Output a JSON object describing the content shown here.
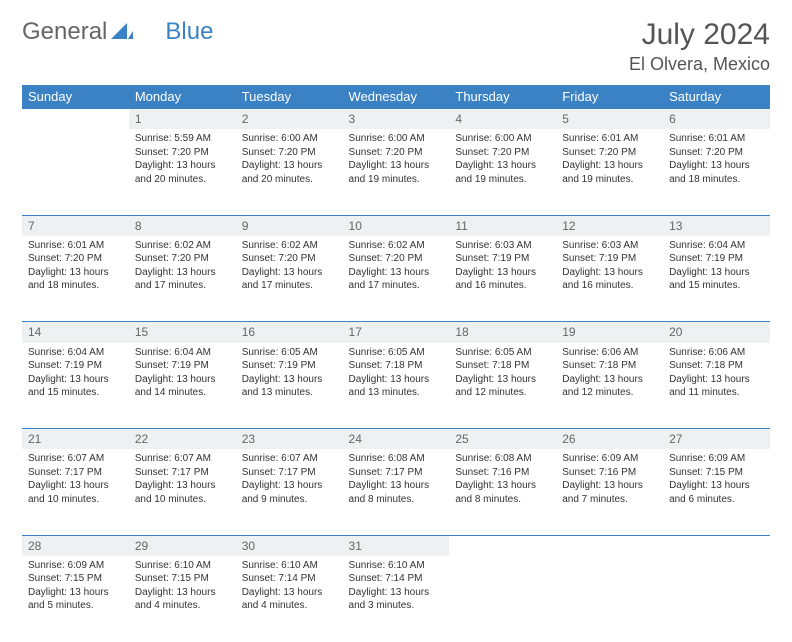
{
  "logo": {
    "text1": "General",
    "text2": "Blue"
  },
  "title": "July 2024",
  "location": "El Olvera, Mexico",
  "colors": {
    "header_bg": "#3b82c4",
    "header_text": "#ffffff",
    "daynum_bg": "#eef0f2",
    "daynum_text": "#666666",
    "body_text": "#333333",
    "rule": "#3b82c4",
    "page_bg": "#ffffff"
  },
  "typography": {
    "title_fontsize": 30,
    "location_fontsize": 18,
    "dayheader_fontsize": 13,
    "daynum_fontsize": 12,
    "cell_fontsize": 10
  },
  "day_headers": [
    "Sunday",
    "Monday",
    "Tuesday",
    "Wednesday",
    "Thursday",
    "Friday",
    "Saturday"
  ],
  "weeks": [
    [
      null,
      {
        "n": "1",
        "sunrise": "5:59 AM",
        "sunset": "7:20 PM",
        "daylight": "13 hours and 20 minutes."
      },
      {
        "n": "2",
        "sunrise": "6:00 AM",
        "sunset": "7:20 PM",
        "daylight": "13 hours and 20 minutes."
      },
      {
        "n": "3",
        "sunrise": "6:00 AM",
        "sunset": "7:20 PM",
        "daylight": "13 hours and 19 minutes."
      },
      {
        "n": "4",
        "sunrise": "6:00 AM",
        "sunset": "7:20 PM",
        "daylight": "13 hours and 19 minutes."
      },
      {
        "n": "5",
        "sunrise": "6:01 AM",
        "sunset": "7:20 PM",
        "daylight": "13 hours and 19 minutes."
      },
      {
        "n": "6",
        "sunrise": "6:01 AM",
        "sunset": "7:20 PM",
        "daylight": "13 hours and 18 minutes."
      }
    ],
    [
      {
        "n": "7",
        "sunrise": "6:01 AM",
        "sunset": "7:20 PM",
        "daylight": "13 hours and 18 minutes."
      },
      {
        "n": "8",
        "sunrise": "6:02 AM",
        "sunset": "7:20 PM",
        "daylight": "13 hours and 17 minutes."
      },
      {
        "n": "9",
        "sunrise": "6:02 AM",
        "sunset": "7:20 PM",
        "daylight": "13 hours and 17 minutes."
      },
      {
        "n": "10",
        "sunrise": "6:02 AM",
        "sunset": "7:20 PM",
        "daylight": "13 hours and 17 minutes."
      },
      {
        "n": "11",
        "sunrise": "6:03 AM",
        "sunset": "7:19 PM",
        "daylight": "13 hours and 16 minutes."
      },
      {
        "n": "12",
        "sunrise": "6:03 AM",
        "sunset": "7:19 PM",
        "daylight": "13 hours and 16 minutes."
      },
      {
        "n": "13",
        "sunrise": "6:04 AM",
        "sunset": "7:19 PM",
        "daylight": "13 hours and 15 minutes."
      }
    ],
    [
      {
        "n": "14",
        "sunrise": "6:04 AM",
        "sunset": "7:19 PM",
        "daylight": "13 hours and 15 minutes."
      },
      {
        "n": "15",
        "sunrise": "6:04 AM",
        "sunset": "7:19 PM",
        "daylight": "13 hours and 14 minutes."
      },
      {
        "n": "16",
        "sunrise": "6:05 AM",
        "sunset": "7:19 PM",
        "daylight": "13 hours and 13 minutes."
      },
      {
        "n": "17",
        "sunrise": "6:05 AM",
        "sunset": "7:18 PM",
        "daylight": "13 hours and 13 minutes."
      },
      {
        "n": "18",
        "sunrise": "6:05 AM",
        "sunset": "7:18 PM",
        "daylight": "13 hours and 12 minutes."
      },
      {
        "n": "19",
        "sunrise": "6:06 AM",
        "sunset": "7:18 PM",
        "daylight": "13 hours and 12 minutes."
      },
      {
        "n": "20",
        "sunrise": "6:06 AM",
        "sunset": "7:18 PM",
        "daylight": "13 hours and 11 minutes."
      }
    ],
    [
      {
        "n": "21",
        "sunrise": "6:07 AM",
        "sunset": "7:17 PM",
        "daylight": "13 hours and 10 minutes."
      },
      {
        "n": "22",
        "sunrise": "6:07 AM",
        "sunset": "7:17 PM",
        "daylight": "13 hours and 10 minutes."
      },
      {
        "n": "23",
        "sunrise": "6:07 AM",
        "sunset": "7:17 PM",
        "daylight": "13 hours and 9 minutes."
      },
      {
        "n": "24",
        "sunrise": "6:08 AM",
        "sunset": "7:17 PM",
        "daylight": "13 hours and 8 minutes."
      },
      {
        "n": "25",
        "sunrise": "6:08 AM",
        "sunset": "7:16 PM",
        "daylight": "13 hours and 8 minutes."
      },
      {
        "n": "26",
        "sunrise": "6:09 AM",
        "sunset": "7:16 PM",
        "daylight": "13 hours and 7 minutes."
      },
      {
        "n": "27",
        "sunrise": "6:09 AM",
        "sunset": "7:15 PM",
        "daylight": "13 hours and 6 minutes."
      }
    ],
    [
      {
        "n": "28",
        "sunrise": "6:09 AM",
        "sunset": "7:15 PM",
        "daylight": "13 hours and 5 minutes."
      },
      {
        "n": "29",
        "sunrise": "6:10 AM",
        "sunset": "7:15 PM",
        "daylight": "13 hours and 4 minutes."
      },
      {
        "n": "30",
        "sunrise": "6:10 AM",
        "sunset": "7:14 PM",
        "daylight": "13 hours and 4 minutes."
      },
      {
        "n": "31",
        "sunrise": "6:10 AM",
        "sunset": "7:14 PM",
        "daylight": "13 hours and 3 minutes."
      },
      null,
      null,
      null
    ]
  ],
  "labels": {
    "sunrise": "Sunrise: ",
    "sunset": "Sunset: ",
    "daylight": "Daylight: "
  }
}
